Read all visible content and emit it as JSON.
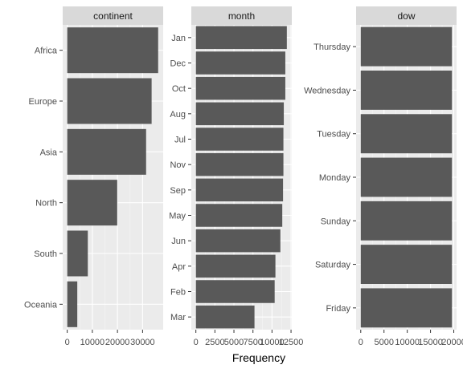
{
  "chart_data": {
    "type": "bar",
    "orientation": "horizontal",
    "xlabel": "Frequency",
    "ylabel": "",
    "bar_color": "#595959",
    "panel_background": "#ebebeb",
    "strip_background": "#d9d9d9",
    "grid": true,
    "facets": [
      {
        "strip": "continent",
        "categories": [
          "Africa",
          "Europe",
          "Asia",
          "North",
          "South",
          "Oceania"
        ],
        "values": [
          36200,
          33600,
          31400,
          19900,
          8200,
          4000
        ],
        "xlim": [
          -1800,
          38200
        ],
        "ticks": [
          0,
          10000,
          20000,
          30000
        ],
        "tick_labels": [
          "0",
          "10000",
          "20000",
          "30000"
        ]
      },
      {
        "strip": "month",
        "categories": [
          "Jan",
          "Dec",
          "Oct",
          "Aug",
          "Jul",
          "Nov",
          "Sep",
          "May",
          "Jun",
          "Apr",
          "Feb",
          "Mar"
        ],
        "values": [
          11950,
          11750,
          11750,
          11550,
          11500,
          11500,
          11450,
          11350,
          11100,
          10450,
          10350,
          7700
        ],
        "xlim": [
          -600,
          12600
        ],
        "ticks": [
          0,
          2500,
          5000,
          7500,
          10000,
          12500
        ],
        "tick_labels": [
          "0",
          "2500",
          "5000",
          "7500",
          "10000",
          "12500"
        ]
      },
      {
        "strip": "dow",
        "categories": [
          "Thursday",
          "Wednesday",
          "Tuesday",
          "Monday",
          "Sunday",
          "Saturday",
          "Friday"
        ],
        "values": [
          19600,
          19600,
          19600,
          19600,
          19600,
          19600,
          19600
        ],
        "xlim": [
          -1000,
          20600
        ],
        "ticks": [
          0,
          5000,
          10000,
          15000,
          20000
        ],
        "tick_labels": [
          "0",
          "5000",
          "10000",
          "15000",
          "20000"
        ]
      }
    ]
  }
}
